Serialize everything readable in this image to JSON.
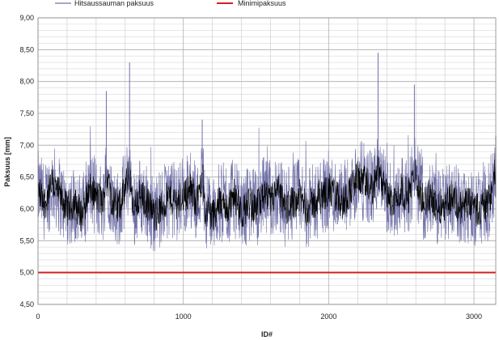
{
  "chart_data": {
    "type": "line",
    "title": "",
    "xlabel": "ID#",
    "ylabel": "Paksuus [mm]",
    "xlim": [
      0,
      3150
    ],
    "ylim": [
      4.5,
      9.0
    ],
    "x_ticks": [
      0,
      1000,
      2000,
      3000
    ],
    "x_tick_labels": [
      "0",
      "1000",
      "2000",
      "3000"
    ],
    "y_ticks": [
      4.5,
      5.0,
      5.5,
      6.0,
      6.5,
      7.0,
      7.5,
      8.0,
      8.5,
      9.0
    ],
    "y_tick_labels": [
      "4,50",
      "5,00",
      "5,50",
      "6,00",
      "6,50",
      "7,00",
      "7,50",
      "8,00",
      "8,50",
      "9,00"
    ],
    "grid": true,
    "legend_position": "top",
    "series": [
      {
        "name": "Hitsaussauman paksuus",
        "color": "#7070a8",
        "x": [
          0,
          50,
          100,
          150,
          200,
          250,
          300,
          350,
          400,
          450,
          470,
          500,
          550,
          600,
          630,
          650,
          700,
          750,
          800,
          850,
          900,
          950,
          1000,
          1050,
          1100,
          1130,
          1150,
          1200,
          1250,
          1300,
          1350,
          1400,
          1450,
          1500,
          1550,
          1600,
          1650,
          1700,
          1750,
          1800,
          1850,
          1900,
          1950,
          2000,
          2050,
          2100,
          2150,
          2200,
          2250,
          2300,
          2340,
          2400,
          2450,
          2500,
          2550,
          2590,
          2650,
          2700,
          2750,
          2800,
          2850,
          2900,
          2950,
          3000,
          3050,
          3100,
          3150
        ],
        "y": [
          6.3,
          6.1,
          6.4,
          6.2,
          6.0,
          6.1,
          5.9,
          6.3,
          6.2,
          6.1,
          7.85,
          6.2,
          6.0,
          6.3,
          8.3,
          6.0,
          6.2,
          6.1,
          5.9,
          6.0,
          6.2,
          6.1,
          6.2,
          6.3,
          6.1,
          7.4,
          6.0,
          5.9,
          6.1,
          6.0,
          6.2,
          5.9,
          6.1,
          6.0,
          6.2,
          6.1,
          6.3,
          6.0,
          6.1,
          6.2,
          6.0,
          6.1,
          6.2,
          6.3,
          6.2,
          6.1,
          6.3,
          6.5,
          6.4,
          6.3,
          8.45,
          6.2,
          6.1,
          6.3,
          6.2,
          7.95,
          6.1,
          6.2,
          6.0,
          6.1,
          6.2,
          6.0,
          6.1,
          6.0,
          6.0,
          6.1,
          7.15
        ]
      },
      {
        "name": "Minimipaksuus",
        "color": "#d42020",
        "x": [
          0,
          3150
        ],
        "y": [
          5.0,
          5.0
        ]
      }
    ]
  }
}
